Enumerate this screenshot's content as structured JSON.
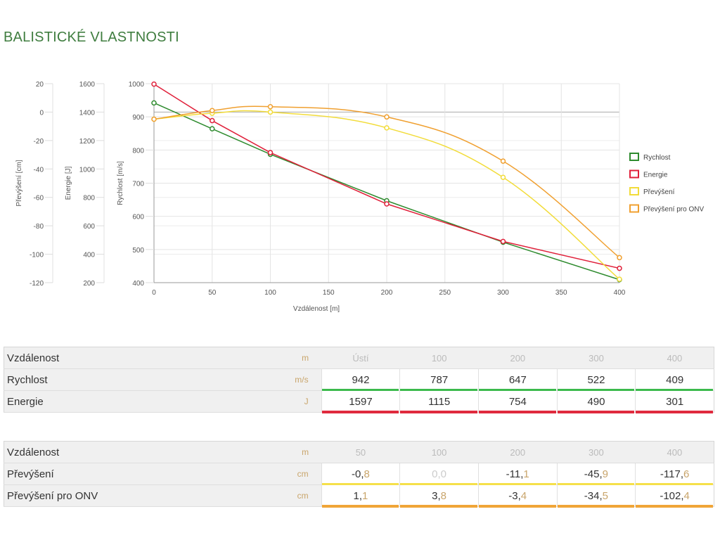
{
  "title": "BALISTICKÉ VLASTNOSTI",
  "chart_data": {
    "type": "line",
    "x": [
      0,
      50,
      100,
      200,
      300,
      400
    ],
    "xlabel": "Vzdálenost [m]",
    "xlim": [
      0,
      400
    ],
    "xticks": [
      0,
      50,
      100,
      150,
      200,
      250,
      300,
      350,
      400
    ],
    "axes": [
      {
        "label": "Převýšení [cm]",
        "ylim": [
          -120,
          20
        ],
        "ticks": [
          20,
          0,
          -20,
          -40,
          -60,
          -80,
          -100,
          -120
        ]
      },
      {
        "label": "Energie [J]",
        "ylim": [
          200,
          1600
        ],
        "ticks": [
          1600,
          1400,
          1200,
          1000,
          800,
          600,
          400,
          200
        ]
      },
      {
        "label": "Rychlost [m/s]",
        "ylim": [
          400,
          1000
        ],
        "ticks": [
          1000,
          900,
          800,
          700,
          600,
          500,
          400
        ]
      }
    ],
    "grid": true,
    "legend": "right",
    "series": [
      {
        "name": "Rychlost",
        "axis": 2,
        "color": "#2e8b2e",
        "values": [
          942,
          864,
          787,
          647,
          522,
          409
        ]
      },
      {
        "name": "Energie",
        "axis": 1,
        "color": "#e0203a",
        "values": [
          1597,
          1340,
          1115,
          754,
          490,
          301
        ]
      },
      {
        "name": "Převýšení",
        "axis": 0,
        "color": "#f2dc3a",
        "values": [
          -5,
          -0.8,
          0.0,
          -11.1,
          -45.9,
          -117.6
        ]
      },
      {
        "name": "Převýšení pro ONV",
        "axis": 0,
        "color": "#f0a030",
        "values": [
          -5,
          1.1,
          3.8,
          -3.4,
          -34.5,
          -102.4
        ]
      }
    ]
  },
  "table1": {
    "head": {
      "label": "Vzdálenost",
      "unit": "m",
      "cols": [
        "Ústí",
        "100",
        "200",
        "300",
        "400"
      ]
    },
    "rows": [
      {
        "label": "Rychlost",
        "unit": "m/s",
        "color": "#3cba4c",
        "cells": [
          [
            "942",
            ""
          ],
          [
            "787",
            ""
          ],
          [
            "647",
            ""
          ],
          [
            "522",
            ""
          ],
          [
            "409",
            ""
          ]
        ]
      },
      {
        "label": "Energie",
        "unit": "J",
        "color": "#e02a3e",
        "cells": [
          [
            "1597",
            ""
          ],
          [
            "1115",
            ""
          ],
          [
            "754",
            ""
          ],
          [
            "490",
            ""
          ],
          [
            "301",
            ""
          ]
        ]
      }
    ]
  },
  "table2": {
    "head": {
      "label": "Vzdálenost",
      "unit": "m",
      "cols": [
        "50",
        "100",
        "200",
        "300",
        "400"
      ]
    },
    "rows": [
      {
        "label": "Převýšení",
        "unit": "cm",
        "color": "#f5e04a",
        "cells": [
          [
            "-0,",
            "8"
          ],
          [
            "0,0",
            ""
          ],
          [
            "-11,",
            "1"
          ],
          [
            "-45,",
            "9"
          ],
          [
            "-117,",
            "6"
          ]
        ],
        "disabled": [
          1
        ]
      },
      {
        "label": "Převýšení pro ONV",
        "unit": "cm",
        "color": "#f0a538",
        "cells": [
          [
            "1,",
            "1"
          ],
          [
            "3,",
            "8"
          ],
          [
            "-3,",
            "4"
          ],
          [
            "-34,",
            "5"
          ],
          [
            "-102,",
            "4"
          ]
        ]
      }
    ]
  }
}
